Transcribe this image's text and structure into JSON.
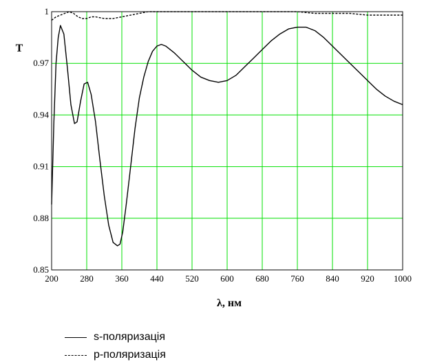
{
  "chart_data": {
    "type": "line",
    "xlabel": "λ,  нм",
    "ylabel": "T",
    "xlim": [
      200,
      1000
    ],
    "ylim": [
      0.85,
      1.0
    ],
    "xticks": [
      "200",
      "280",
      "360",
      "440",
      "520",
      "600",
      "680",
      "760",
      "840",
      "920",
      "1000"
    ],
    "yticks": [
      "0.85",
      "0.88",
      "0.91",
      "0.94",
      "0.97",
      "1"
    ],
    "grid": true,
    "grid_color": "#00e000",
    "legend_position": "bottom-left",
    "series": [
      {
        "name": "s-поляризація",
        "style": "solid",
        "color": "#000000",
        "x": [
          200,
          205,
          210,
          215,
          220,
          228,
          236,
          244,
          252,
          258,
          266,
          274,
          282,
          290,
          300,
          310,
          320,
          330,
          340,
          350,
          356,
          362,
          370,
          380,
          390,
          400,
          410,
          420,
          430,
          440,
          450,
          460,
          470,
          480,
          500,
          520,
          540,
          560,
          580,
          600,
          620,
          640,
          660,
          680,
          700,
          720,
          740,
          760,
          780,
          800,
          820,
          840,
          860,
          880,
          900,
          920,
          940,
          960,
          980,
          1000
        ],
        "y": [
          0.888,
          0.935,
          0.97,
          0.985,
          0.992,
          0.987,
          0.967,
          0.946,
          0.935,
          0.936,
          0.948,
          0.958,
          0.959,
          0.952,
          0.936,
          0.914,
          0.893,
          0.876,
          0.866,
          0.864,
          0.865,
          0.872,
          0.888,
          0.91,
          0.932,
          0.95,
          0.962,
          0.971,
          0.977,
          0.98,
          0.981,
          0.98,
          0.978,
          0.976,
          0.971,
          0.966,
          0.962,
          0.96,
          0.959,
          0.96,
          0.963,
          0.968,
          0.973,
          0.978,
          0.983,
          0.987,
          0.99,
          0.991,
          0.991,
          0.989,
          0.985,
          0.98,
          0.975,
          0.97,
          0.965,
          0.96,
          0.955,
          0.951,
          0.948,
          0.946
        ]
      },
      {
        "name": "p-поляризація",
        "style": "dashed",
        "color": "#000000",
        "x": [
          200,
          210,
          220,
          230,
          240,
          250,
          260,
          270,
          280,
          290,
          300,
          320,
          340,
          360,
          380,
          400,
          420,
          440,
          460,
          480,
          500,
          520,
          540,
          560,
          580,
          600,
          640,
          680,
          720,
          760,
          800,
          840,
          880,
          920,
          960,
          1000
        ],
        "y": [
          0.995,
          0.997,
          0.998,
          0.999,
          1.0,
          0.999,
          0.997,
          0.996,
          0.996,
          0.997,
          0.997,
          0.996,
          0.996,
          0.997,
          0.998,
          0.999,
          1.0,
          1.0,
          1.0,
          1.0,
          1.0,
          1.0,
          1.0,
          1.0,
          1.0,
          1.0,
          1.0,
          1.0,
          1.0,
          1.0,
          0.999,
          0.999,
          0.999,
          0.998,
          0.998,
          0.998
        ]
      }
    ]
  }
}
